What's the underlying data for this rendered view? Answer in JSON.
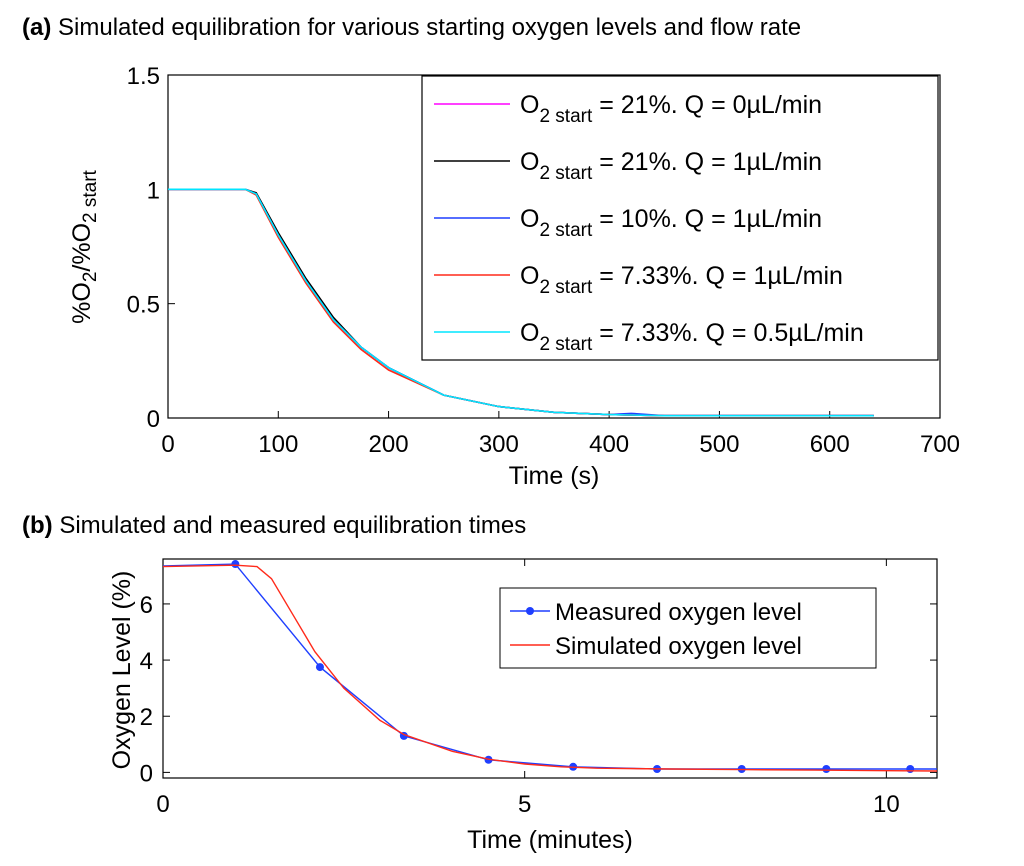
{
  "chart_data": [
    {
      "type": "line",
      "panel_label": "(a)",
      "title": "Simulated equilibration for various starting oxygen levels and flow rate",
      "xlabel": "Time (s)",
      "ylabel": "%O2/%O2 start",
      "xlim": [
        0,
        700
      ],
      "ylim": [
        0,
        1.5
      ],
      "xticks": [
        0,
        100,
        200,
        300,
        400,
        500,
        600,
        700
      ],
      "yticks": [
        0,
        0.5,
        1,
        1.5
      ],
      "ytick_labels": [
        "0",
        "0.5",
        "1",
        "1.5"
      ],
      "grid": false,
      "legend_position": "top-right",
      "series": [
        {
          "name": "O2 start = 21%. Q = 0µL/min",
          "legend_main": "O",
          "legend_sub": "2 start",
          "legend_rest": " = 21%. Q = 0µL/min",
          "color": "#ff00ff",
          "x": [
            0,
            70,
            80,
            100,
            125,
            150,
            175,
            200,
            250,
            300,
            350,
            400,
            450,
            500,
            550,
            600,
            640
          ],
          "y": [
            1,
            1,
            0.98,
            0.8,
            0.6,
            0.43,
            0.31,
            0.22,
            0.1,
            0.05,
            0.025,
            0.015,
            0.01,
            0.01,
            0.01,
            0.01,
            0.01
          ]
        },
        {
          "name": "O2 start = 21%. Q = 1µL/min",
          "legend_main": "O",
          "legend_sub": "2 start",
          "legend_rest": " = 21%. Q = 1µL/min",
          "color": "#000000",
          "x": [
            0,
            70,
            80,
            100,
            125,
            150,
            175,
            200,
            250,
            300,
            350,
            400,
            450,
            500,
            550,
            600,
            640
          ],
          "y": [
            1,
            1,
            0.985,
            0.81,
            0.61,
            0.44,
            0.31,
            0.22,
            0.1,
            0.05,
            0.025,
            0.015,
            0.01,
            0.01,
            0.01,
            0.01,
            0.01
          ]
        },
        {
          "name": "O2 start = 10%. Q = 1µL/min",
          "legend_main": "O",
          "legend_sub": "2 start",
          "legend_rest": " = 10%. Q = 1µL/min",
          "color": "#1f3fff",
          "x": [
            0,
            70,
            80,
            100,
            125,
            150,
            175,
            200,
            250,
            300,
            350,
            400,
            420,
            450,
            500,
            550,
            600,
            640
          ],
          "y": [
            1,
            1,
            0.98,
            0.8,
            0.6,
            0.43,
            0.31,
            0.22,
            0.1,
            0.05,
            0.025,
            0.015,
            0.02,
            0.01,
            0.01,
            0.01,
            0.01,
            0.01
          ]
        },
        {
          "name": "O2 start = 7.33%. Q = 1µL/min",
          "legend_main": "O",
          "legend_sub": "2 start",
          "legend_rest": " = 7.33%. Q = 1µL/min",
          "color": "#ff2a1a",
          "x": [
            0,
            70,
            80,
            100,
            125,
            150,
            175,
            200,
            250,
            300,
            350,
            400,
            450,
            500,
            550,
            600,
            640
          ],
          "y": [
            1,
            1,
            0.975,
            0.79,
            0.59,
            0.42,
            0.3,
            0.21,
            0.1,
            0.05,
            0.025,
            0.015,
            0.01,
            0.01,
            0.01,
            0.01,
            0.01
          ]
        },
        {
          "name": "O2 start = 7.33%. Q = 0.5µL/min",
          "legend_main": "O",
          "legend_sub": "2 start",
          "legend_rest": " = 7.33%. Q = 0.5µL/min",
          "color": "#00e5ff",
          "x": [
            0,
            70,
            80,
            100,
            125,
            150,
            175,
            200,
            250,
            300,
            350,
            400,
            450,
            500,
            550,
            600,
            640
          ],
          "y": [
            1,
            1,
            0.98,
            0.8,
            0.6,
            0.43,
            0.31,
            0.22,
            0.1,
            0.05,
            0.025,
            0.015,
            0.01,
            0.01,
            0.01,
            0.01,
            0.01
          ]
        }
      ]
    },
    {
      "type": "line",
      "panel_label": "(b)",
      "title": "Simulated and measured equilibration times",
      "xlabel": "Time (minutes)",
      "ylabel": "Oxygen Level (%)",
      "xlim": [
        0,
        10.7
      ],
      "ylim": [
        -0.2,
        7.6
      ],
      "xticks": [
        0,
        5,
        10
      ],
      "yticks": [
        0,
        2,
        4,
        6
      ],
      "grid": false,
      "legend_position": "top-right",
      "series": [
        {
          "name": "Measured oxygen level",
          "color": "#1f3fff",
          "marker": "circle",
          "x": [
            0,
            1,
            2.17,
            3.33,
            4.5,
            5.67,
            6.83,
            8,
            9.17,
            10.33,
            10.7
          ],
          "y": [
            7.35,
            7.42,
            3.75,
            1.3,
            0.45,
            0.2,
            0.12,
            0.12,
            0.12,
            0.12,
            0.12
          ],
          "marker_x": [
            1,
            2.17,
            3.33,
            4.5,
            5.67,
            6.83,
            8,
            9.17,
            10.33
          ],
          "marker_y": [
            7.42,
            3.75,
            1.3,
            0.45,
            0.2,
            0.12,
            0.12,
            0.12,
            0.12
          ]
        },
        {
          "name": "Simulated oxygen level",
          "color": "#ff2a1a",
          "x": [
            0,
            1.0,
            1.3,
            1.5,
            1.8,
            2.1,
            2.5,
            3.0,
            3.33,
            4.0,
            4.5,
            5.0,
            5.5,
            6.0,
            7.0,
            8.0,
            9.0,
            10.0,
            10.7
          ],
          "y": [
            7.33,
            7.38,
            7.33,
            6.9,
            5.6,
            4.3,
            3.0,
            1.85,
            1.35,
            0.75,
            0.47,
            0.3,
            0.2,
            0.15,
            0.12,
            0.1,
            0.08,
            0.06,
            0.05
          ]
        }
      ]
    }
  ]
}
